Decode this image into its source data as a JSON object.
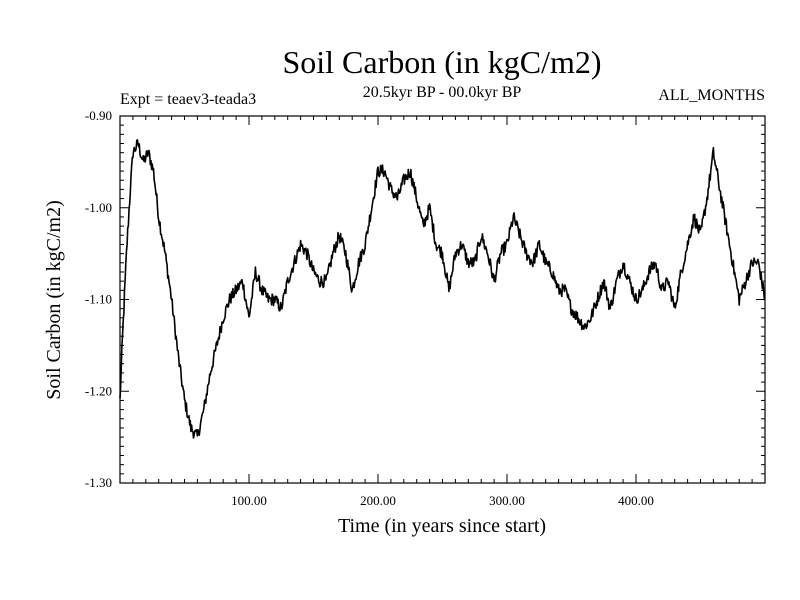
{
  "chart_data": {
    "type": "line",
    "title": "Soil Carbon (in kgC/m2)",
    "subtitle": "20.5kyr BP - 00.0kyr BP",
    "experiment": "Expt = teaev3-teada3",
    "months_label": "ALL_MONTHS",
    "xlabel": "Time (in years since start)",
    "ylabel": "Soil Carbon (in kgC/m2)",
    "xlim": [
      0,
      500
    ],
    "ylim": [
      -1.3,
      -0.9
    ],
    "x_ticks": [
      {
        "value": 100,
        "label": "100.00"
      },
      {
        "value": 200,
        "label": "200.00"
      },
      {
        "value": 300,
        "label": "300.00"
      },
      {
        "value": 400,
        "label": "400.00"
      }
    ],
    "y_ticks": [
      {
        "value": -0.9,
        "label": "-0.90"
      },
      {
        "value": -1.0,
        "label": "-1.00"
      },
      {
        "value": -1.1,
        "label": "-1.10"
      },
      {
        "value": -1.2,
        "label": "-1.20"
      },
      {
        "value": -1.3,
        "label": "-1.30"
      }
    ],
    "series": [
      {
        "name": "Soil Carbon",
        "color": "#000000",
        "x": [
          0,
          2,
          5,
          8,
          10,
          14,
          18,
          22,
          26,
          30,
          35,
          40,
          45,
          50,
          55,
          60,
          65,
          70,
          75,
          80,
          85,
          90,
          95,
          100,
          105,
          110,
          115,
          120,
          125,
          130,
          135,
          140,
          145,
          150,
          155,
          160,
          165,
          170,
          175,
          180,
          185,
          190,
          195,
          200,
          205,
          210,
          215,
          220,
          225,
          230,
          235,
          240,
          245,
          250,
          255,
          260,
          265,
          270,
          275,
          280,
          285,
          290,
          295,
          300,
          305,
          310,
          315,
          320,
          325,
          330,
          335,
          340,
          345,
          350,
          355,
          360,
          365,
          370,
          375,
          380,
          385,
          390,
          395,
          400,
          405,
          410,
          415,
          420,
          425,
          430,
          435,
          440,
          445,
          450,
          455,
          460,
          465,
          470,
          475,
          480,
          485,
          490,
          495,
          500
        ],
        "values": [
          -1.21,
          -1.14,
          -1.05,
          -0.98,
          -0.94,
          -0.93,
          -0.95,
          -0.94,
          -0.96,
          -1.01,
          -1.05,
          -1.1,
          -1.16,
          -1.21,
          -1.24,
          -1.25,
          -1.22,
          -1.18,
          -1.15,
          -1.12,
          -1.1,
          -1.09,
          -1.08,
          -1.12,
          -1.07,
          -1.09,
          -1.1,
          -1.1,
          -1.11,
          -1.08,
          -1.06,
          -1.04,
          -1.05,
          -1.07,
          -1.08,
          -1.08,
          -1.05,
          -1.03,
          -1.05,
          -1.09,
          -1.06,
          -1.04,
          -1.0,
          -0.96,
          -0.96,
          -0.98,
          -0.99,
          -0.97,
          -0.96,
          -0.99,
          -1.02,
          -1.0,
          -1.04,
          -1.05,
          -1.09,
          -1.05,
          -1.04,
          -1.06,
          -1.06,
          -1.03,
          -1.05,
          -1.08,
          -1.05,
          -1.04,
          -1.01,
          -1.03,
          -1.05,
          -1.06,
          -1.04,
          -1.06,
          -1.07,
          -1.09,
          -1.09,
          -1.11,
          -1.12,
          -1.13,
          -1.12,
          -1.1,
          -1.08,
          -1.11,
          -1.08,
          -1.06,
          -1.08,
          -1.1,
          -1.09,
          -1.07,
          -1.06,
          -1.09,
          -1.08,
          -1.11,
          -1.07,
          -1.04,
          -1.01,
          -1.03,
          -0.99,
          -0.94,
          -0.98,
          -1.02,
          -1.06,
          -1.1,
          -1.08,
          -1.06,
          -1.06,
          -1.1
        ]
      }
    ]
  }
}
